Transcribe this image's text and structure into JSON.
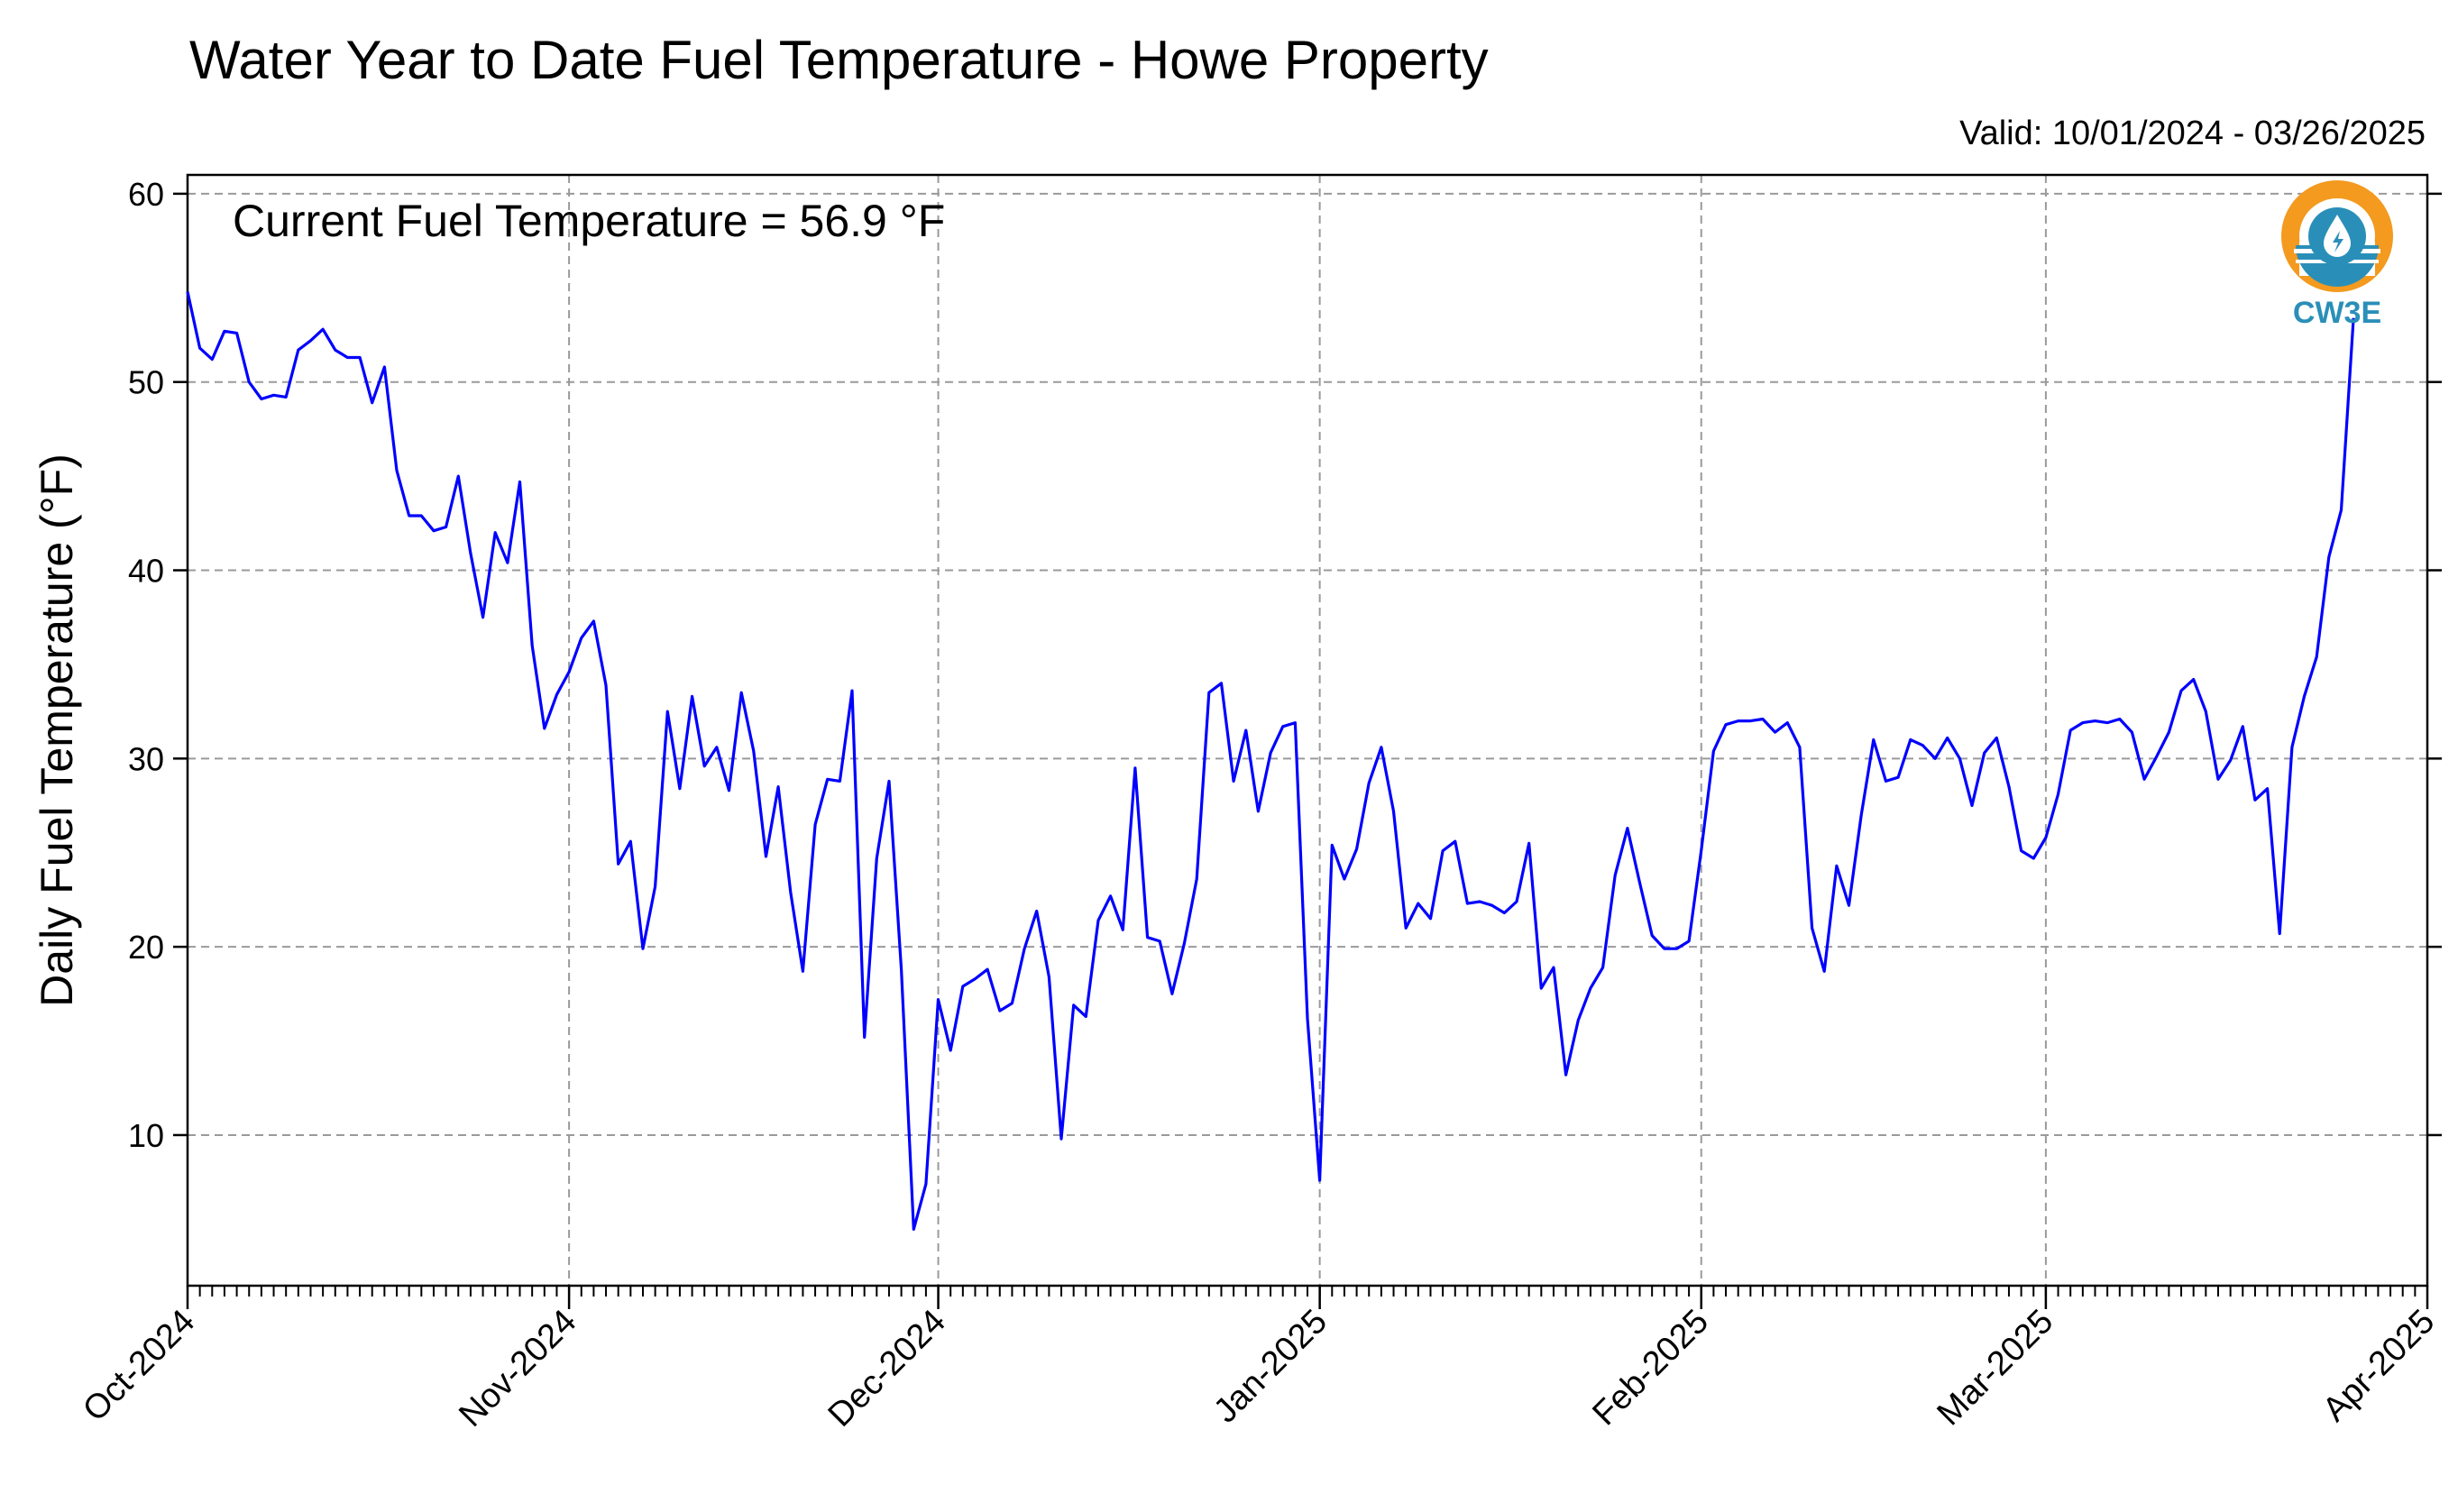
{
  "chart_data": {
    "type": "line",
    "title": "Water Year to Date Fuel Temperature - Howe Property",
    "valid_label": "Valid: 10/01/2024 - 03/26/2025",
    "annotation": "Current Fuel Temperature = 56.9 °F",
    "ylabel": "Daily Fuel Temperature (°F)",
    "xlabel": "",
    "ylim": [
      2,
      61
    ],
    "xlim": [
      "2024-10-01",
      "2025-04-01"
    ],
    "yticks": [
      10,
      20,
      30,
      40,
      50,
      60
    ],
    "xticks": [
      {
        "date": "2024-10-01",
        "label": "Oct-2024"
      },
      {
        "date": "2024-11-01",
        "label": "Nov-2024"
      },
      {
        "date": "2024-12-01",
        "label": "Dec-2024"
      },
      {
        "date": "2025-01-01",
        "label": "Jan-2025"
      },
      {
        "date": "2025-02-01",
        "label": "Feb-2025"
      },
      {
        "date": "2025-03-01",
        "label": "Mar-2025"
      },
      {
        "date": "2025-04-01",
        "label": "Apr-2025"
      }
    ],
    "grid": true,
    "line_color": "#0000ff",
    "series": [
      {
        "x_start": "2024-10-01",
        "x_end": "2025-03-26",
        "x_step": "1 day",
        "values": [
          54.8,
          51.8,
          51.2,
          52.7,
          52.6,
          50.0,
          49.1,
          49.3,
          49.2,
          51.7,
          52.2,
          52.8,
          51.7,
          51.3,
          51.3,
          48.9,
          50.8,
          45.3,
          42.9,
          42.9,
          42.1,
          42.3,
          45.0,
          40.9,
          37.5,
          42.0,
          40.4,
          44.7,
          36.0,
          31.6,
          33.4,
          34.6,
          36.4,
          37.3,
          33.9,
          24.4,
          25.6,
          19.9,
          23.2,
          32.5,
          28.4,
          33.3,
          29.6,
          30.6,
          28.3,
          33.5,
          30.4,
          24.8,
          28.5,
          22.9,
          18.7,
          26.5,
          28.9,
          28.8,
          33.6,
          15.2,
          24.7,
          28.8,
          18.8,
          5.0,
          7.4,
          17.2,
          14.5,
          17.9,
          18.3,
          18.8,
          16.6,
          17.0,
          19.9,
          21.9,
          18.4,
          9.8,
          16.9,
          16.3,
          21.4,
          22.7,
          20.9,
          29.5,
          20.5,
          20.3,
          17.5,
          20.2,
          23.6,
          33.5,
          34.0,
          28.8,
          31.5,
          27.2,
          30.3,
          31.7,
          31.9,
          16.2,
          7.6,
          25.4,
          23.6,
          25.2,
          28.7,
          30.6,
          27.2,
          21.0,
          22.3,
          21.5,
          25.1,
          25.6,
          22.3,
          22.4,
          22.2,
          21.8,
          22.4,
          25.5,
          17.8,
          18.9,
          13.2,
          16.1,
          17.8,
          18.9,
          23.8,
          26.3,
          23.4,
          20.6,
          19.9,
          19.9,
          20.3,
          25.1,
          30.4,
          31.8,
          32.0,
          32.0,
          32.1,
          31.4,
          31.9,
          30.6,
          21.0,
          18.7,
          24.3,
          22.2,
          27.0,
          31.0,
          28.8,
          29.0,
          31.0,
          30.7,
          30.0,
          31.1,
          30.0,
          27.5,
          30.3,
          31.1,
          28.5,
          25.1,
          24.7,
          25.8,
          28.1,
          31.5,
          31.9,
          32.0,
          31.9,
          32.1,
          31.4,
          28.9,
          30.1,
          31.4,
          33.6,
          34.2,
          32.5,
          28.9,
          29.9,
          31.7,
          27.8,
          28.4,
          20.7,
          30.6,
          33.3,
          35.4,
          40.7,
          43.2,
          53.4
        ]
      }
    ],
    "logo": {
      "text": "CW3E",
      "ring_color": "#f39a1f",
      "water_color": "#2a8fb8"
    }
  }
}
